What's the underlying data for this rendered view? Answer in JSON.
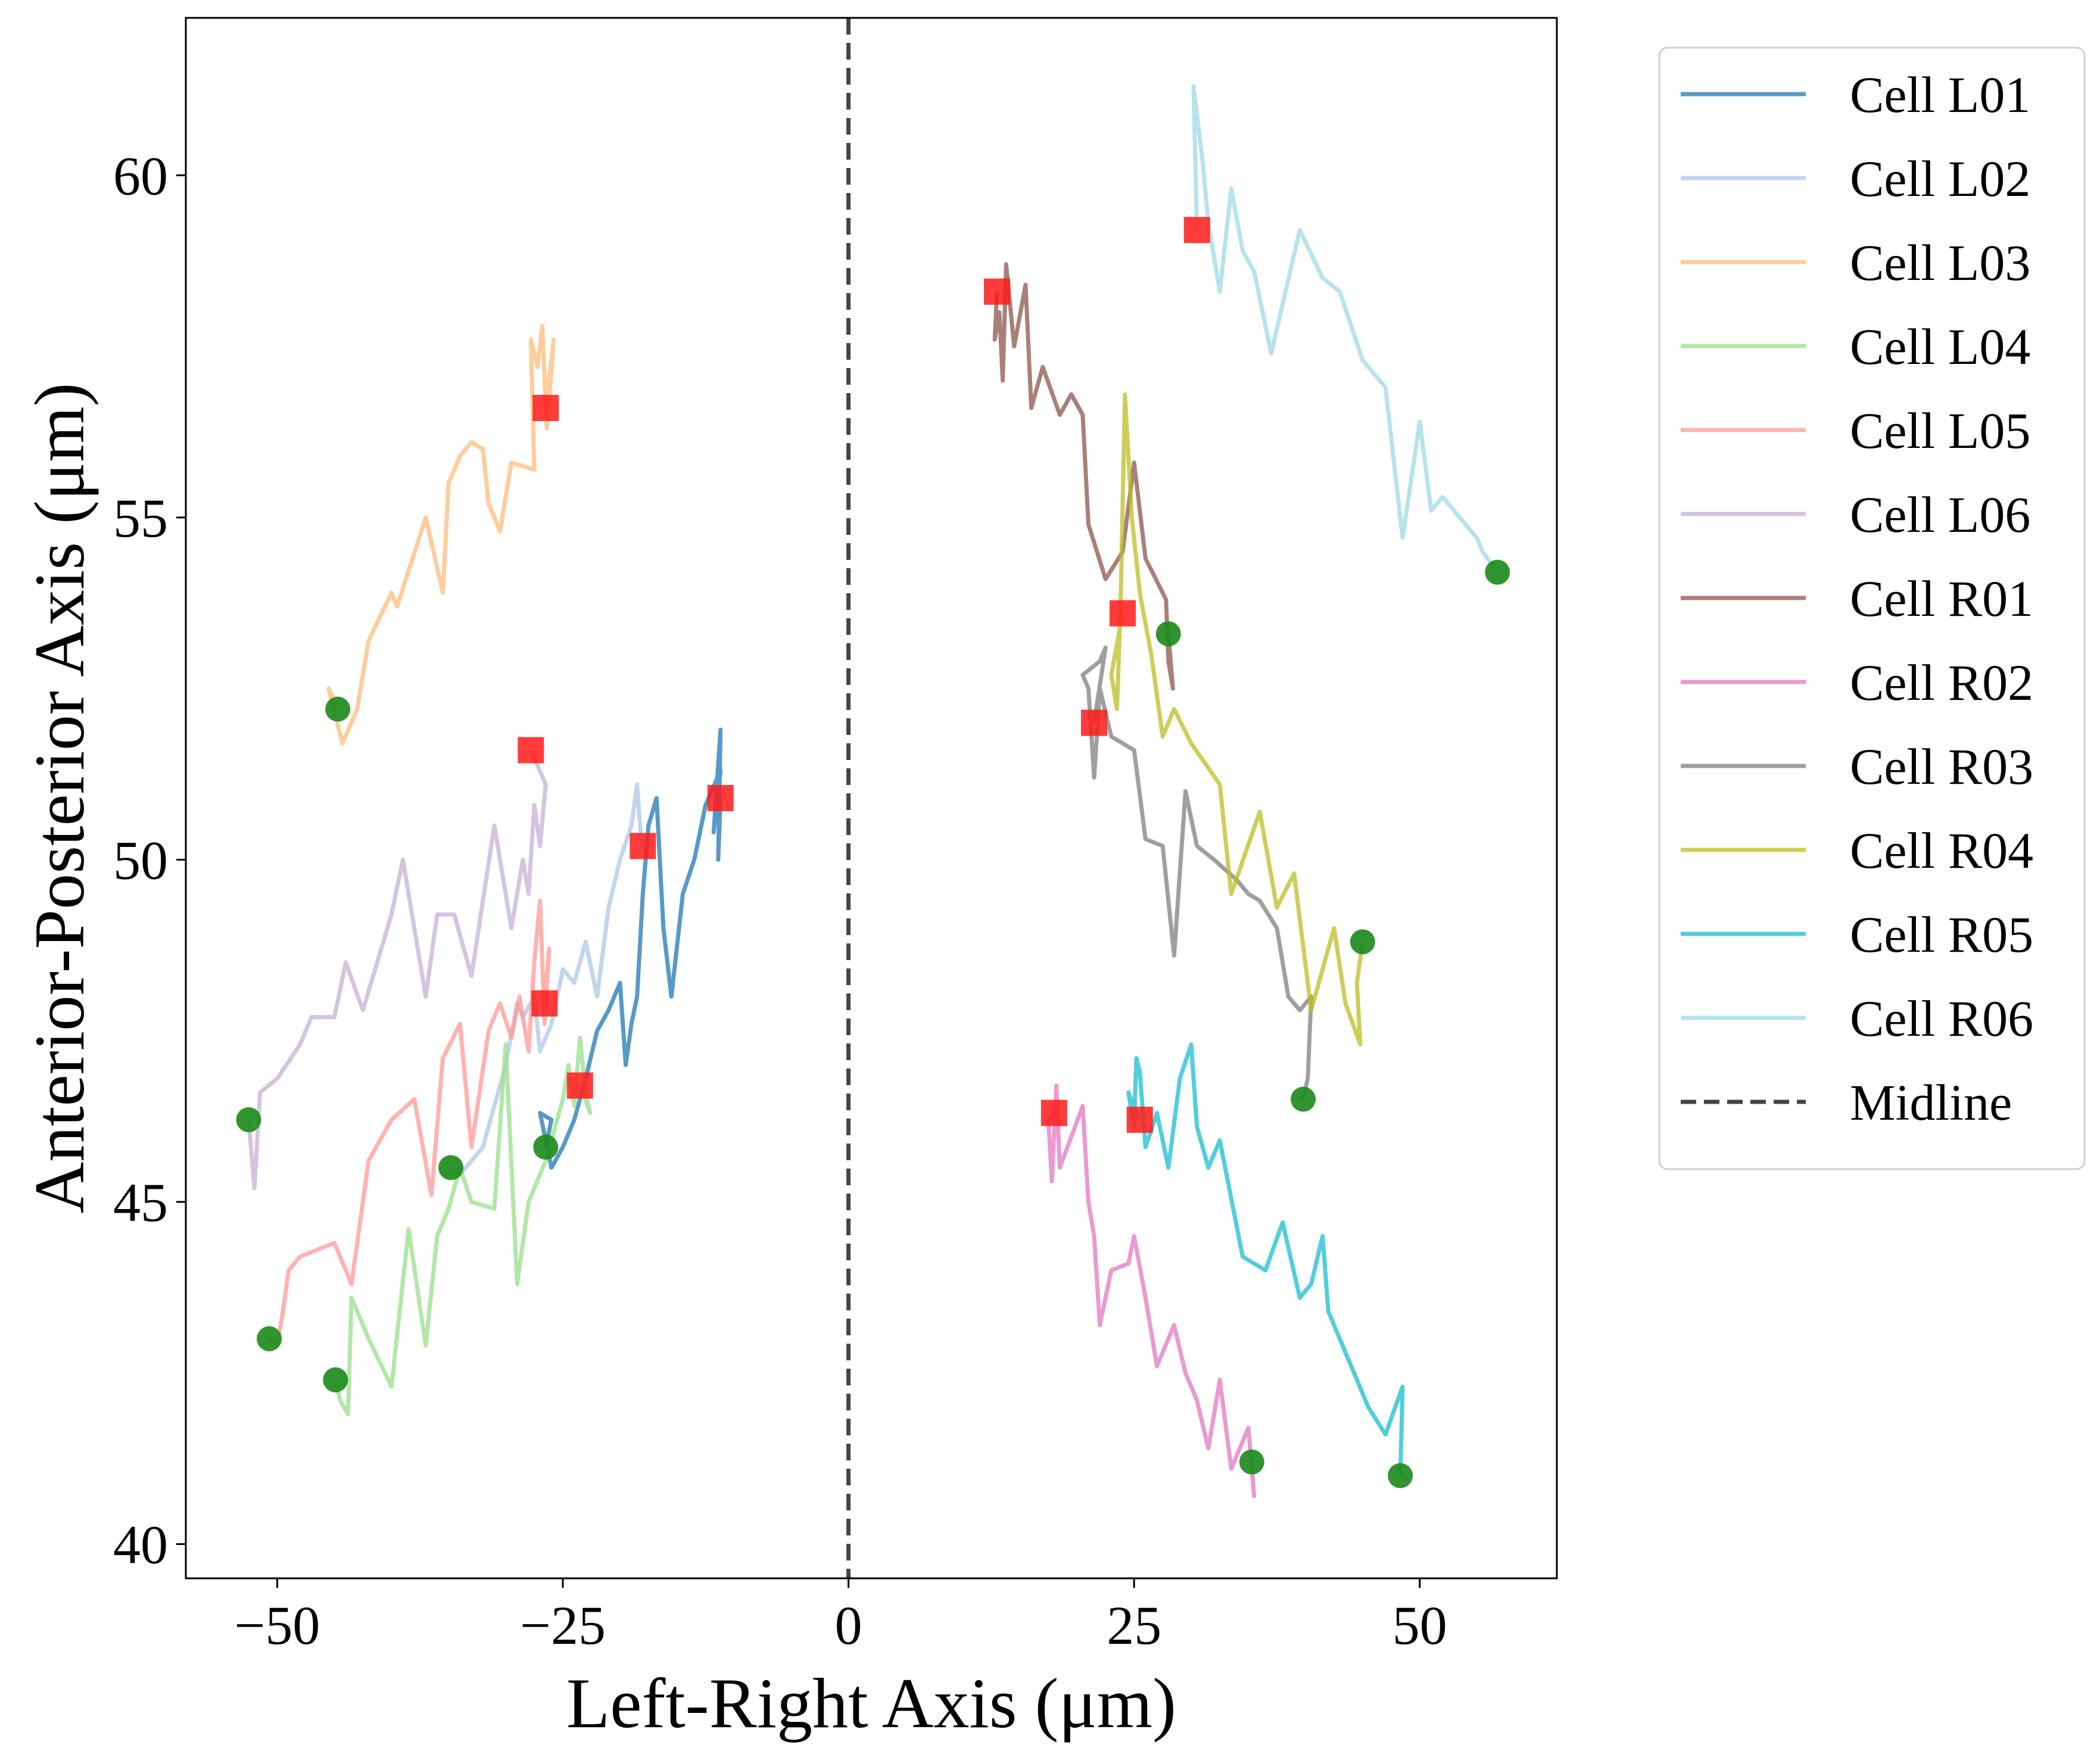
{
  "chart_data": {
    "type": "line",
    "title": "",
    "xlabel": "Left-Right Axis (μm)",
    "ylabel": "Anterior-Posterior Axis (μm)",
    "xlim": [
      -58,
      62
    ],
    "ylim": [
      39.5,
      62.3
    ],
    "xticks": [
      -50,
      -25,
      0,
      25,
      50
    ],
    "xtick_labels": [
      "−50",
      "−25",
      "0",
      "25",
      "50"
    ],
    "yticks": [
      40,
      45,
      50,
      55,
      60
    ],
    "ytick_labels": [
      "40",
      "45",
      "50",
      "55",
      "60"
    ],
    "grid": false,
    "legend_position": "outside-right-top",
    "midline": {
      "name": "Midline",
      "x": 0,
      "color": "#444444",
      "style": "dashed"
    },
    "start_marker": {
      "shape": "circle",
      "color": "#1a8a1a"
    },
    "end_marker": {
      "shape": "square",
      "color": "#ff1a1a"
    },
    "series": [
      {
        "name": "Cell L01",
        "color": "#1f77b4",
        "points": [
          [
            -26.5,
            45.8
          ],
          [
            -26,
            46.2
          ],
          [
            -27,
            46.3
          ],
          [
            -26,
            45.5
          ],
          [
            -25,
            45.8
          ],
          [
            -24,
            46.2
          ],
          [
            -23,
            46.8
          ],
          [
            -22,
            47.5
          ],
          [
            -21,
            47.8
          ],
          [
            -20,
            48.2
          ],
          [
            -19.5,
            47.0
          ],
          [
            -19,
            47.6
          ],
          [
            -18.5,
            48.0
          ],
          [
            -18,
            49.5
          ],
          [
            -17.5,
            50.5
          ],
          [
            -16.8,
            50.9
          ],
          [
            -16.2,
            49.0
          ],
          [
            -15.5,
            48.0
          ],
          [
            -14.5,
            49.5
          ],
          [
            -13.5,
            50.0
          ],
          [
            -12.5,
            50.8
          ],
          [
            -11.2,
            51.3
          ],
          [
            -11.8,
            50.4
          ],
          [
            -11.2,
            51.9
          ],
          [
            -11.4,
            50.0
          ],
          [
            -11.2,
            50.9
          ]
        ]
      },
      {
        "name": "Cell L02",
        "color": "#aec7e8",
        "points": [
          [
            -34.8,
            45.5
          ],
          [
            -34,
            45.4
          ],
          [
            -33,
            45.6
          ],
          [
            -32,
            45.8
          ],
          [
            -30,
            47.0
          ],
          [
            -29,
            47.9
          ],
          [
            -28.5,
            47.7
          ],
          [
            -27.5,
            48.0
          ],
          [
            -27,
            47.2
          ],
          [
            -26,
            47.6
          ],
          [
            -25,
            48.4
          ],
          [
            -24,
            48.2
          ],
          [
            -23,
            48.8
          ],
          [
            -22,
            48.0
          ],
          [
            -21,
            49.3
          ],
          [
            -20,
            50.0
          ],
          [
            -19,
            50.5
          ],
          [
            -18.5,
            51.1
          ],
          [
            -18.2,
            50.4
          ],
          [
            -18,
            50.2
          ]
        ]
      },
      {
        "name": "Cell L03",
        "color": "#ffbb78",
        "points": [
          [
            -44.7,
            52.2
          ],
          [
            -45.5,
            52.5
          ],
          [
            -44.3,
            51.7
          ],
          [
            -43,
            52.2
          ],
          [
            -42,
            53.2
          ],
          [
            -40,
            53.9
          ],
          [
            -39.5,
            53.7
          ],
          [
            -37,
            55.0
          ],
          [
            -35.5,
            53.9
          ],
          [
            -35,
            55.5
          ],
          [
            -34,
            55.9
          ],
          [
            -33,
            56.1
          ],
          [
            -32,
            56.0
          ],
          [
            -31.5,
            55.2
          ],
          [
            -30.5,
            54.8
          ],
          [
            -29.5,
            55.8
          ],
          [
            -27.5,
            55.7
          ],
          [
            -27.8,
            57.6
          ],
          [
            -27.2,
            57.2
          ],
          [
            -26.8,
            57.8
          ],
          [
            -26.4,
            56.3
          ],
          [
            -25.8,
            57.6
          ],
          [
            -26.5,
            56.6
          ]
        ]
      },
      {
        "name": "Cell L04",
        "color": "#98df8a",
        "points": [
          [
            -44.9,
            42.4
          ],
          [
            -44.5,
            42.1
          ],
          [
            -43.8,
            41.9
          ],
          [
            -43.5,
            43.6
          ],
          [
            -42,
            43.0
          ],
          [
            -40,
            42.3
          ],
          [
            -38.5,
            44.6
          ],
          [
            -37,
            42.9
          ],
          [
            -36,
            44.5
          ],
          [
            -35,
            44.9
          ],
          [
            -34,
            45.5
          ],
          [
            -33,
            45.0
          ],
          [
            -31,
            44.9
          ],
          [
            -30,
            47.3
          ],
          [
            -29,
            43.8
          ],
          [
            -28,
            45.0
          ],
          [
            -26.5,
            45.6
          ],
          [
            -25,
            46.5
          ],
          [
            -24.5,
            47.0
          ],
          [
            -24,
            46.4
          ],
          [
            -23.5,
            47.4
          ],
          [
            -23,
            46.6
          ],
          [
            -22.6,
            46.3
          ],
          [
            -23.5,
            46.7
          ]
        ]
      },
      {
        "name": "Cell L05",
        "color": "#ff9896",
        "points": [
          [
            -50.7,
            43.0
          ],
          [
            -50,
            42.9
          ],
          [
            -49.5,
            43.4
          ],
          [
            -49,
            44.0
          ],
          [
            -48,
            44.2
          ],
          [
            -45,
            44.4
          ],
          [
            -43.5,
            43.8
          ],
          [
            -42,
            45.6
          ],
          [
            -40,
            46.2
          ],
          [
            -38,
            46.5
          ],
          [
            -36.5,
            45.1
          ],
          [
            -35.5,
            47.1
          ],
          [
            -34,
            47.6
          ],
          [
            -33,
            45.8
          ],
          [
            -31.5,
            47.5
          ],
          [
            -30.5,
            47.9
          ],
          [
            -29.5,
            47.4
          ],
          [
            -28.8,
            48.0
          ],
          [
            -28,
            47.2
          ],
          [
            -27.5,
            48.5
          ],
          [
            -27,
            49.4
          ],
          [
            -26.6,
            47.6
          ],
          [
            -26.2,
            48.7
          ],
          [
            -26.6,
            47.9
          ]
        ]
      },
      {
        "name": "Cell L06",
        "color": "#c5b0d5",
        "points": [
          [
            -52.5,
            46.2
          ],
          [
            -52,
            45.2
          ],
          [
            -51.5,
            46.6
          ],
          [
            -50,
            46.8
          ],
          [
            -48,
            47.3
          ],
          [
            -47,
            47.7
          ],
          [
            -45,
            47.7
          ],
          [
            -44,
            48.5
          ],
          [
            -42.5,
            47.8
          ],
          [
            -40,
            49.2
          ],
          [
            -39,
            50.0
          ],
          [
            -37,
            48.0
          ],
          [
            -36,
            49.2
          ],
          [
            -34.5,
            49.2
          ],
          [
            -33,
            48.3
          ],
          [
            -31,
            50.5
          ],
          [
            -29.5,
            49.0
          ],
          [
            -28.5,
            50.0
          ],
          [
            -28,
            49.5
          ],
          [
            -27.5,
            50.8
          ],
          [
            -27,
            50.2
          ],
          [
            -26.5,
            51.1
          ],
          [
            -27.8,
            51.6
          ]
        ]
      },
      {
        "name": "Cell R01",
        "color": "#8c564b",
        "points": [
          [
            28,
            53.3
          ],
          [
            28.4,
            52.5
          ],
          [
            28,
            52.9
          ],
          [
            27.8,
            53.8
          ],
          [
            26,
            54.4
          ],
          [
            25,
            55.8
          ],
          [
            24,
            54.5
          ],
          [
            22.5,
            54.1
          ],
          [
            21,
            54.9
          ],
          [
            20.5,
            56.5
          ],
          [
            19.5,
            56.8
          ],
          [
            18.5,
            56.5
          ],
          [
            17,
            57.2
          ],
          [
            16,
            56.6
          ],
          [
            15.5,
            58.4
          ],
          [
            14.5,
            57.5
          ],
          [
            13.8,
            58.7
          ],
          [
            13.5,
            57.0
          ],
          [
            13.2,
            58.0
          ],
          [
            12.8,
            57.6
          ],
          [
            13,
            58.3
          ]
        ]
      },
      {
        "name": "Cell R02",
        "color": "#e377c2",
        "points": [
          [
            35.3,
            41.2
          ],
          [
            35.5,
            40.7
          ],
          [
            35,
            41.7
          ],
          [
            33.5,
            41.1
          ],
          [
            32.5,
            42.4
          ],
          [
            31.5,
            41.4
          ],
          [
            30.5,
            42.1
          ],
          [
            29.5,
            42.5
          ],
          [
            28.5,
            43.2
          ],
          [
            27,
            42.6
          ],
          [
            26,
            43.6
          ],
          [
            25,
            44.5
          ],
          [
            24.5,
            44.1
          ],
          [
            23,
            44.0
          ],
          [
            22,
            43.2
          ],
          [
            21.5,
            44.5
          ],
          [
            21,
            45.0
          ],
          [
            20.5,
            46.4
          ],
          [
            18.5,
            45.5
          ],
          [
            18.2,
            46.7
          ],
          [
            17.8,
            45.3
          ],
          [
            17.5,
            46.2
          ],
          [
            18,
            46.3
          ]
        ]
      },
      {
        "name": "Cell R03",
        "color": "#7f7f7f",
        "points": [
          [
            39.8,
            46.5
          ],
          [
            40.2,
            46.8
          ],
          [
            40.5,
            48.0
          ],
          [
            39.5,
            47.8
          ],
          [
            38.5,
            48.0
          ],
          [
            37.5,
            49.0
          ],
          [
            36,
            49.4
          ],
          [
            35,
            49.5
          ],
          [
            34,
            49.7
          ],
          [
            32,
            50.0
          ],
          [
            30.5,
            50.2
          ],
          [
            29.5,
            51.0
          ],
          [
            28.5,
            48.6
          ],
          [
            27.5,
            50.2
          ],
          [
            26,
            50.3
          ],
          [
            25,
            51.6
          ],
          [
            23,
            51.8
          ],
          [
            22,
            52.5
          ],
          [
            21.5,
            51.2
          ],
          [
            21,
            52.5
          ],
          [
            20.5,
            52.7
          ],
          [
            22,
            52.9
          ],
          [
            22.5,
            53.1
          ],
          [
            21.5,
            52.0
          ]
        ]
      },
      {
        "name": "Cell R04",
        "color": "#bcbd22",
        "points": [
          [
            45,
            48.8
          ],
          [
            44.5,
            48.2
          ],
          [
            44.8,
            47.3
          ],
          [
            43.5,
            47.9
          ],
          [
            42.5,
            49.0
          ],
          [
            40.5,
            47.8
          ],
          [
            39,
            49.8
          ],
          [
            37.5,
            49.3
          ],
          [
            36,
            50.7
          ],
          [
            33.5,
            49.5
          ],
          [
            32.5,
            51.1
          ],
          [
            30,
            51.7
          ],
          [
            28.5,
            52.2
          ],
          [
            27.5,
            51.8
          ],
          [
            26.5,
            53.0
          ],
          [
            25.5,
            53.9
          ],
          [
            24.8,
            55.0
          ],
          [
            24.2,
            56.8
          ],
          [
            23.8,
            53.6
          ],
          [
            23.5,
            52.2
          ],
          [
            23,
            52.7
          ],
          [
            24,
            53.6
          ]
        ]
      },
      {
        "name": "Cell R05",
        "color": "#17becf",
        "points": [
          [
            48.3,
            41.0
          ],
          [
            48.5,
            42.3
          ],
          [
            47,
            41.6
          ],
          [
            45.5,
            42.0
          ],
          [
            42,
            43.4
          ],
          [
            41.5,
            44.5
          ],
          [
            40.5,
            43.8
          ],
          [
            39.5,
            43.6
          ],
          [
            38,
            44.7
          ],
          [
            36.5,
            44.0
          ],
          [
            34.5,
            44.2
          ],
          [
            32.5,
            45.9
          ],
          [
            31.5,
            45.5
          ],
          [
            30.5,
            46.1
          ],
          [
            30,
            47.3
          ],
          [
            29,
            46.8
          ],
          [
            28,
            45.5
          ],
          [
            27,
            46.3
          ],
          [
            26,
            45.8
          ],
          [
            25.5,
            46.9
          ],
          [
            25.2,
            47.1
          ],
          [
            25,
            46.1
          ],
          [
            24.5,
            46.6
          ],
          [
            25.5,
            46.2
          ]
        ]
      },
      {
        "name": "Cell R06",
        "color": "#9edae5",
        "points": [
          [
            56.8,
            54.2
          ],
          [
            55.5,
            54.5
          ],
          [
            55,
            54.7
          ],
          [
            52,
            55.3
          ],
          [
            51,
            55.1
          ],
          [
            50,
            56.4
          ],
          [
            48.5,
            54.7
          ],
          [
            47,
            56.9
          ],
          [
            45,
            57.3
          ],
          [
            43,
            58.3
          ],
          [
            41.5,
            58.5
          ],
          [
            39.5,
            59.2
          ],
          [
            37,
            57.4
          ],
          [
            35.5,
            58.6
          ],
          [
            34.5,
            58.9
          ],
          [
            33.5,
            59.8
          ],
          [
            32.5,
            58.3
          ],
          [
            31.5,
            59.3
          ],
          [
            31,
            60.2
          ],
          [
            30.2,
            61.3
          ],
          [
            30.5,
            59.2
          ]
        ]
      }
    ]
  }
}
